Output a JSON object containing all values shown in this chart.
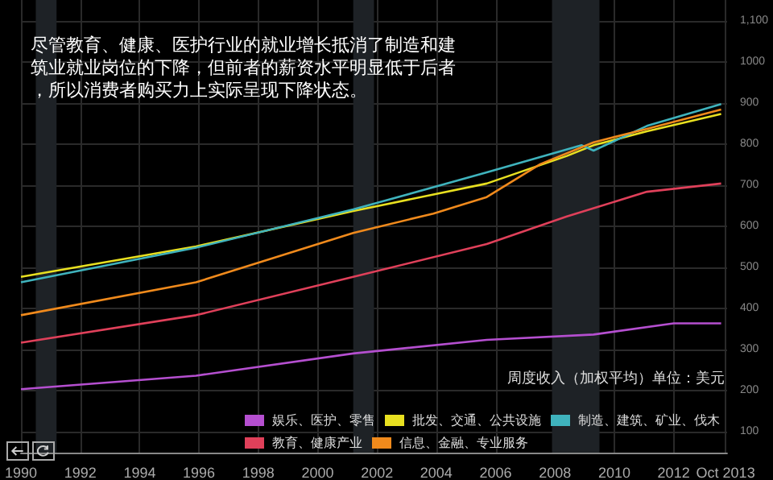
{
  "chart_data": {
    "type": "line",
    "title": "尽管教育、健康、医护行业的就业增长抵消了制造和建筑业就业岗位的下降，但前者的薪资水平明显低于后者，所以消费者购买力上实际呈现下降状态。",
    "ylabel": "周度收入（加权平均）单位：美元",
    "series": [
      {
        "name": "娱乐、医护、零售",
        "color": "#b54fd0",
        "x": [
          1990.0,
          1995.9,
          2001.2,
          2005.7,
          2009.3,
          2012.0,
          2013.6
        ],
        "values": [
          204,
          237,
          291,
          324,
          337,
          364,
          364
        ]
      },
      {
        "name": "批发、交通、公共设施",
        "color": "#e8e020",
        "x": [
          1990.0,
          1995.9,
          2001.2,
          2005.7,
          2008.4,
          2009.3,
          2011.1,
          2013.6
        ],
        "values": [
          477,
          551,
          637,
          704,
          771,
          797,
          831,
          873
        ]
      },
      {
        "name": "制造、建筑、矿业、伐木",
        "color": "#3fb3bd",
        "x": [
          1990.0,
          1995.9,
          2001.2,
          2005.7,
          2008.9,
          2009.3,
          2011.1,
          2013.6
        ],
        "values": [
          464,
          548,
          641,
          731,
          797,
          784,
          844,
          897
        ]
      },
      {
        "name": "教育、健康产业",
        "color": "#e0405a",
        "x": [
          1990.0,
          1995.9,
          2001.2,
          2005.7,
          2008.4,
          2011.1,
          2013.6
        ],
        "values": [
          317,
          384,
          477,
          557,
          624,
          684,
          704
        ]
      },
      {
        "name": "信息、金融、专业服务",
        "color": "#f08a1c",
        "x": [
          1990.0,
          1995.9,
          2001.2,
          2003.9,
          2005.7,
          2007.5,
          2009.3,
          2011.1,
          2013.6
        ],
        "values": [
          384,
          464,
          584,
          631,
          671,
          751,
          804,
          837,
          884
        ]
      }
    ],
    "xlim": [
      1990,
      2013.8
    ],
    "xticks": [
      1990,
      1992,
      1994,
      1996,
      1998,
      2000,
      2002,
      2004,
      2006,
      2008,
      2010,
      2012,
      {
        "value": 2013.75,
        "label": "Oct 2013"
      }
    ],
    "ylim": [
      50,
      1150
    ],
    "yticks": [
      100,
      200,
      300,
      400,
      500,
      600,
      700,
      800,
      900,
      1000,
      {
        "value": 1100,
        "label": "1,100"
      }
    ],
    "bands": [
      {
        "axis": "x",
        "from": 1990.5,
        "to": 1991.2,
        "color": "#1e2226"
      },
      {
        "axis": "x",
        "from": 2001.2,
        "to": 2001.9,
        "color": "#1e2226"
      },
      {
        "axis": "x",
        "from": 2007.9,
        "to": 2009.5,
        "color": "#1e2226"
      }
    ],
    "grid": true,
    "legend": "bottom right"
  }
}
